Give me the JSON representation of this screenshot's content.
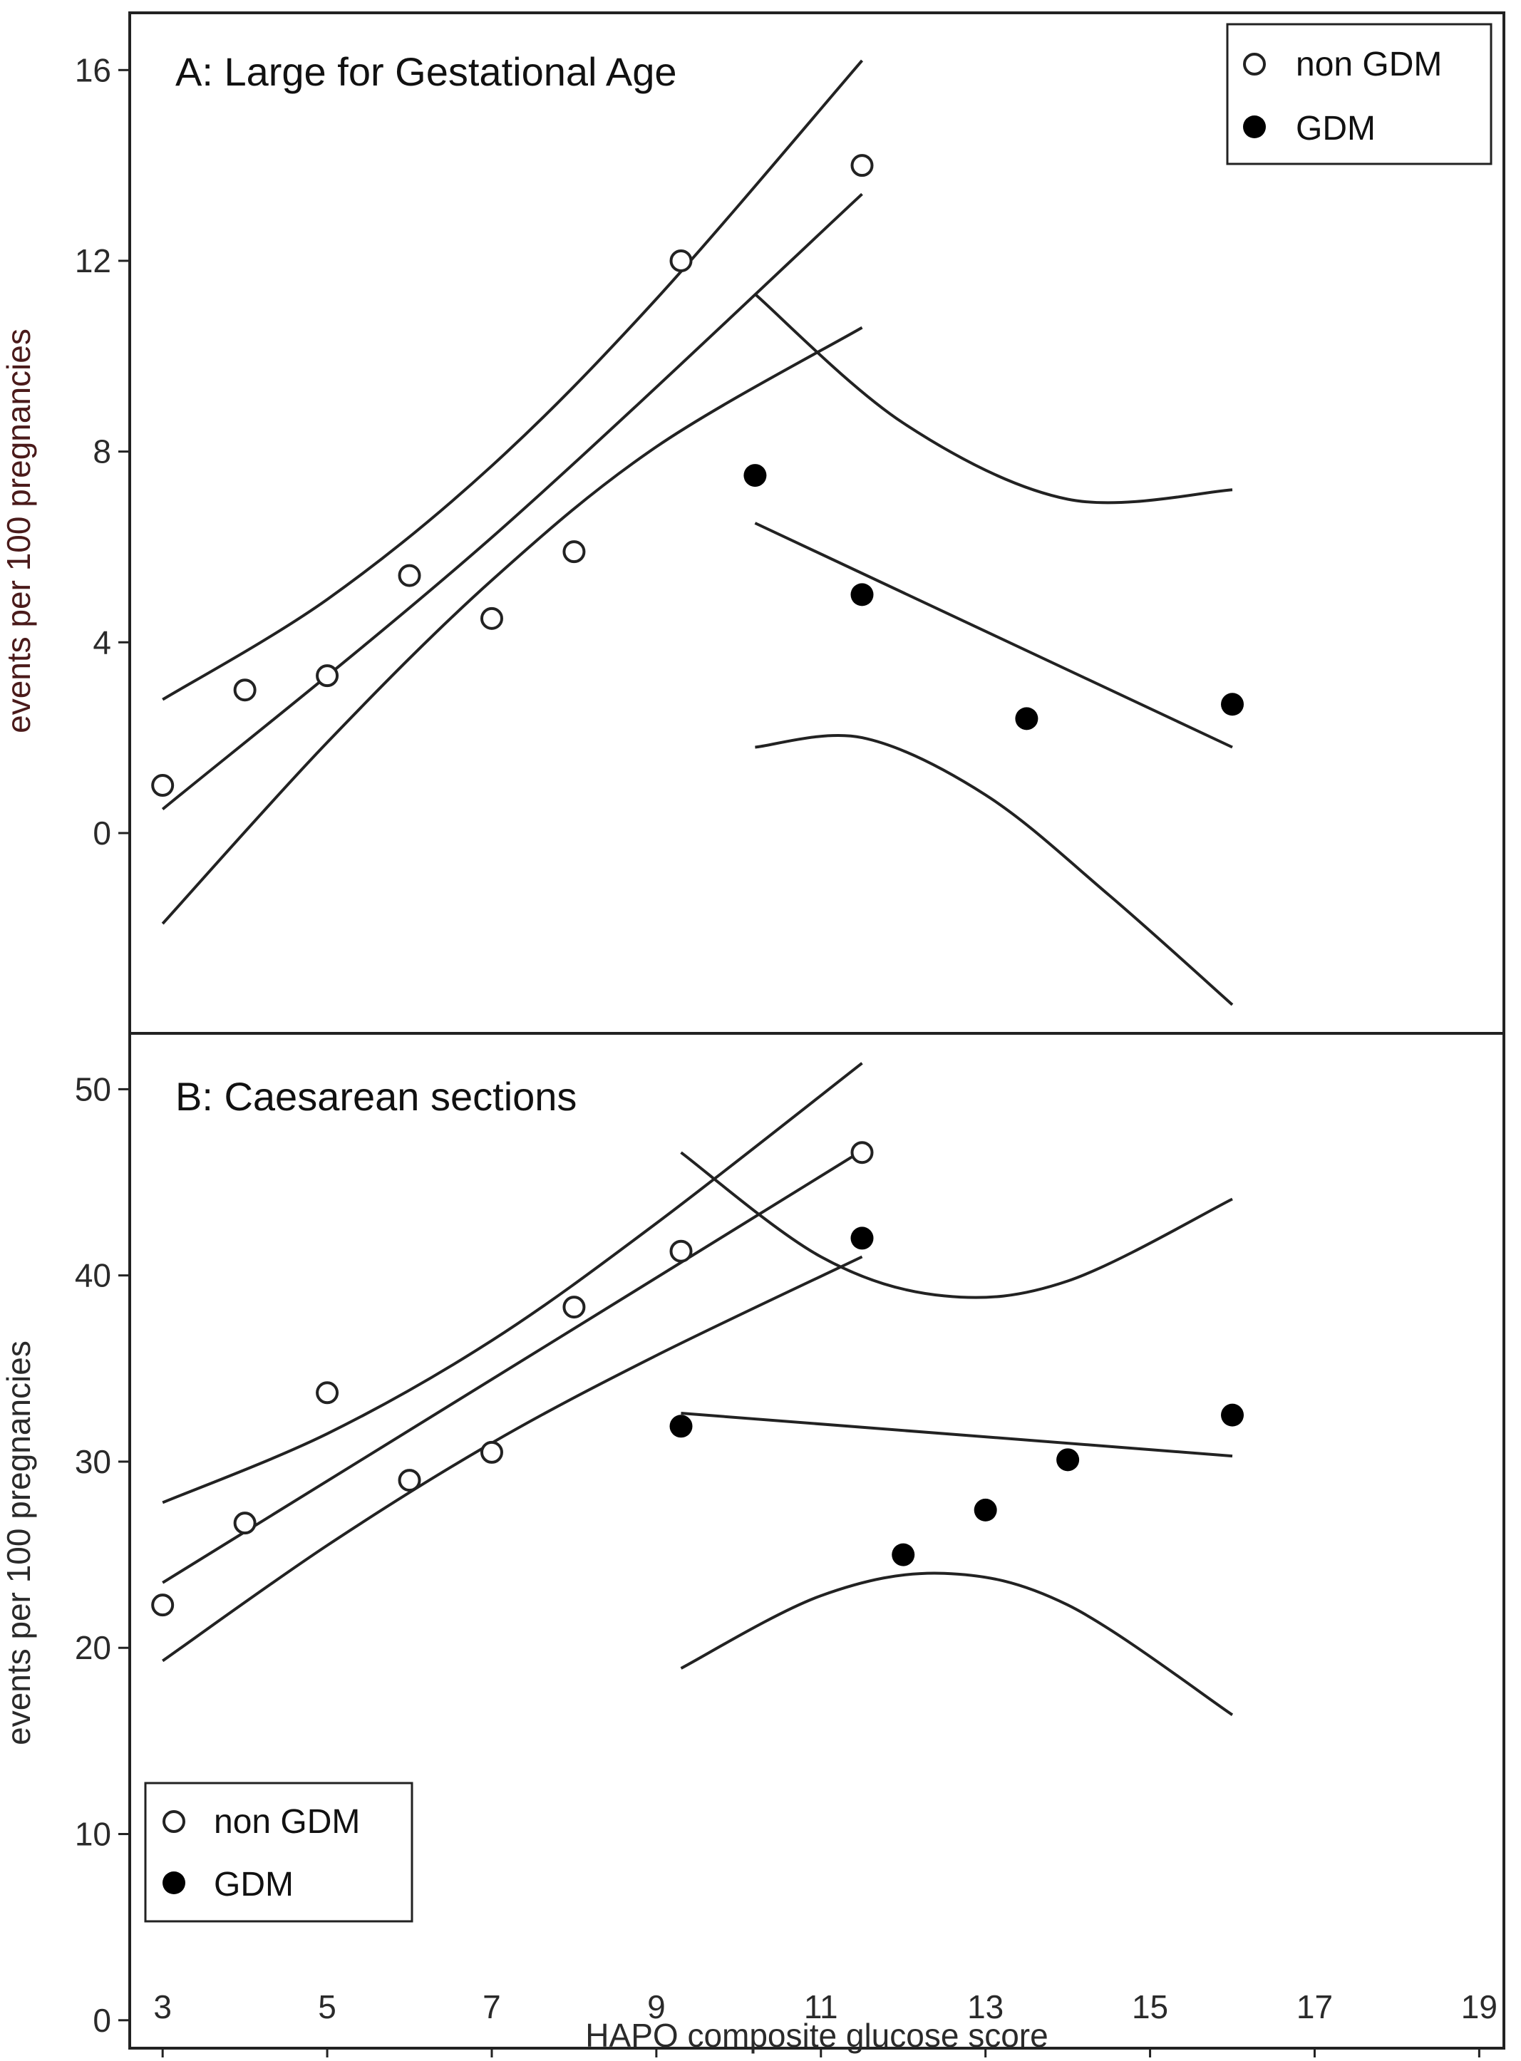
{
  "chart_data": [
    {
      "panel": "A",
      "type": "scatter",
      "title": "A: Large for Gestational Age",
      "ylabel": "events per 100 pregnancies",
      "xlabel": "",
      "xlim": [
        2.6,
        19.3
      ],
      "ylim": [
        -4.2,
        17.2
      ],
      "yticks": [
        0,
        4,
        8,
        12,
        16
      ],
      "legend": {
        "position": "top-right",
        "entries": [
          "non GDM",
          "GDM"
        ]
      },
      "series": [
        {
          "name": "non GDM",
          "marker": "open-circle",
          "x": [
            3,
            4,
            5,
            6,
            7,
            8,
            9.3,
            11.5
          ],
          "y": [
            1.0,
            3.0,
            3.3,
            5.4,
            4.5,
            5.9,
            12.0,
            14.0
          ]
        },
        {
          "name": "GDM",
          "marker": "filled-circle",
          "x": [
            10.2,
            11.5,
            13.5,
            16
          ],
          "y": [
            7.5,
            5.0,
            2.4,
            2.7
          ]
        }
      ],
      "fit_lines": [
        {
          "group": "non GDM",
          "kind": "fit",
          "x": [
            3,
            7,
            11.5
          ],
          "y": [
            0.5,
            6.2,
            13.4
          ]
        },
        {
          "group": "non GDM",
          "kind": "upper CI",
          "x": [
            3,
            5,
            7,
            9,
            11.5
          ],
          "y": [
            2.8,
            4.9,
            7.7,
            11.2,
            16.2
          ]
        },
        {
          "group": "non GDM",
          "kind": "lower CI",
          "x": [
            3,
            5,
            7,
            9,
            11.5
          ],
          "y": [
            -1.9,
            1.9,
            5.3,
            8.1,
            10.6
          ]
        },
        {
          "group": "GDM",
          "kind": "fit",
          "x": [
            10.2,
            16
          ],
          "y": [
            6.5,
            1.8
          ]
        },
        {
          "group": "GDM",
          "kind": "upper CI",
          "x": [
            10.2,
            12,
            14,
            16
          ],
          "y": [
            11.3,
            8.6,
            7.0,
            7.2
          ]
        },
        {
          "group": "GDM",
          "kind": "lower CI",
          "x": [
            10.2,
            11.5,
            13,
            14.5,
            16
          ],
          "y": [
            1.8,
            2.0,
            0.8,
            -1.3,
            -3.6
          ]
        }
      ]
    },
    {
      "panel": "B",
      "type": "scatter",
      "title": "B: Caesarean sections",
      "ylabel": "events per 100 pregnancies",
      "xlabel": "HAPO composite glucose score",
      "xlim": [
        2.6,
        19.3
      ],
      "ylim": [
        -1.5,
        53
      ],
      "yticks": [
        0,
        10,
        20,
        30,
        40,
        50
      ],
      "xticks": [
        3,
        5,
        7,
        9,
        11,
        13,
        15,
        17,
        19
      ],
      "legend": {
        "position": "bottom-left",
        "entries": [
          "non GDM",
          "GDM"
        ]
      },
      "series": [
        {
          "name": "non GDM",
          "marker": "open-circle",
          "x": [
            3,
            4,
            5,
            6,
            7,
            8,
            9.3,
            11.5
          ],
          "y": [
            22.3,
            26.7,
            33.7,
            29.0,
            30.5,
            38.3,
            41.3,
            46.6
          ]
        },
        {
          "name": "GDM",
          "marker": "filled-circle",
          "x": [
            9.3,
            11.5,
            12,
            13,
            14,
            16
          ],
          "y": [
            31.9,
            42.0,
            25.0,
            27.4,
            30.1,
            32.5
          ]
        }
      ],
      "fit_lines": [
        {
          "group": "non GDM",
          "kind": "fit",
          "x": [
            3,
            11.5
          ],
          "y": [
            23.5,
            46.7
          ]
        },
        {
          "group": "non GDM",
          "kind": "upper CI",
          "x": [
            3,
            5,
            7,
            9,
            11.5
          ],
          "y": [
            27.8,
            31.5,
            36.5,
            42.8,
            51.4
          ]
        },
        {
          "group": "non GDM",
          "kind": "lower CI",
          "x": [
            3,
            5,
            7,
            9,
            11.5
          ],
          "y": [
            19.3,
            25.5,
            31.0,
            35.7,
            41.0
          ]
        },
        {
          "group": "GDM",
          "kind": "fit",
          "x": [
            9.3,
            16
          ],
          "y": [
            32.6,
            30.3
          ]
        },
        {
          "group": "GDM",
          "kind": "upper CI",
          "x": [
            9.3,
            11,
            12.5,
            14,
            16
          ],
          "y": [
            46.6,
            41.0,
            38.9,
            39.7,
            44.1
          ]
        },
        {
          "group": "GDM",
          "kind": "lower CI",
          "x": [
            9.3,
            11,
            12.5,
            14,
            16
          ],
          "y": [
            18.9,
            22.8,
            24.0,
            22.3,
            16.4
          ]
        }
      ]
    }
  ]
}
